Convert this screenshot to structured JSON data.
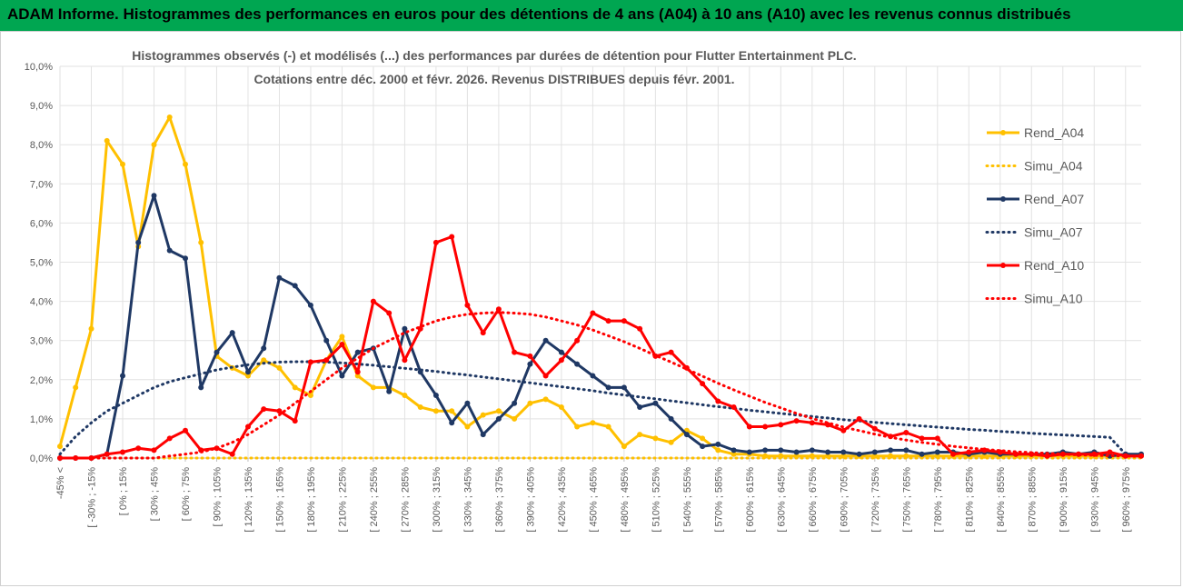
{
  "banner": {
    "title": "ADAM Informe. Histogrammes des performances en euros pour des détentions de 4 ans (A04) à 10 ans (A10) avec les revenus connus distribués"
  },
  "chart_data": {
    "type": "line",
    "title_line1": "Histogrammes observés (-) et modélisés (...) des performances par durées de détention pour Flutter Entertainment PLC.",
    "title_line2": "Cotations entre déc. 2000 et févr. 2026. Revenus DISTRIBUES depuis févr. 2001.",
    "xlabel": "",
    "ylabel": "",
    "ylim": [
      0,
      10
    ],
    "yticks": [
      "0,0%",
      "1,0%",
      "2,0%",
      "3,0%",
      "4,0%",
      "5,0%",
      "6,0%",
      "7,0%",
      "8,0%",
      "9,0%",
      "10,0%"
    ],
    "xtick_labels": [
      "-45% <",
      "[ -30% ; -15%",
      "[ 0% ; 15%",
      "[ 30% ; 45%",
      "[ 60% ; 75%",
      "[ 90% ; 105%",
      "[ 120% ; 135%",
      "[ 150% ; 165%",
      "[ 180% ; 195%",
      "[ 210% ; 225%",
      "[ 240% ; 255%",
      "[ 270% ; 285%",
      "[ 300% ; 315%",
      "[ 330% ; 345%",
      "[ 360% ; 375%",
      "[ 390% ; 405%",
      "[ 420% ; 435%",
      "[ 450% ; 465%",
      "[ 480% ; 495%",
      "[ 510% ; 525%",
      "[ 540% ; 555%",
      "[ 570% ; 585%",
      "[ 600% ; 615%",
      "[ 630% ; 645%",
      "[ 660% ; 675%",
      "[ 690% ; 705%",
      "[ 720% ; 735%",
      "[ 750% ; 765%",
      "[ 780% ; 795%",
      "[ 810% ; 825%",
      "[ 840% ; 855%",
      "[ 870% ; 885%",
      "[ 900% ; 915%",
      "[ 930% ; 945%",
      "[ 960% ; 975%"
    ],
    "n_points": 70,
    "legend_position": "right",
    "series": [
      {
        "name": "Rend_A04",
        "style": "solid",
        "color": "#ffc000",
        "values": [
          0.3,
          1.8,
          3.3,
          8.1,
          7.5,
          5.4,
          8.0,
          8.7,
          7.5,
          5.5,
          2.6,
          2.3,
          2.1,
          2.5,
          2.3,
          1.8,
          1.6,
          2.5,
          3.1,
          2.1,
          1.8,
          1.8,
          1.6,
          1.3,
          1.2,
          1.2,
          0.8,
          1.1,
          1.2,
          1.0,
          1.4,
          1.5,
          1.3,
          0.8,
          0.9,
          0.8,
          0.3,
          0.6,
          0.5,
          0.4,
          0.7,
          0.5,
          0.2,
          0.1,
          0.1,
          0.05,
          0.05,
          0.05,
          0.05,
          0.05,
          0.05,
          0.05,
          0.05,
          0.05,
          0.05,
          0.05,
          0.05,
          0.05,
          0.05,
          0.05,
          0.05,
          0.05,
          0.05,
          0.05,
          0.05,
          0.05,
          0.05,
          0.05,
          0.05,
          0.05
        ]
      },
      {
        "name": "Simu_A04",
        "style": "dotted",
        "color": "#ffc000",
        "values": [
          0,
          0,
          0,
          0,
          0,
          0,
          0,
          0,
          0,
          0,
          0,
          0,
          0,
          0,
          0,
          0,
          0,
          0,
          0,
          0,
          0,
          0,
          0,
          0,
          0,
          0,
          0,
          0,
          0,
          0,
          0,
          0,
          0,
          0,
          0,
          0,
          0,
          0,
          0,
          0,
          0,
          0,
          0,
          0,
          0,
          0,
          0,
          0,
          0,
          0,
          0,
          0,
          0,
          0,
          0,
          0,
          0,
          0,
          0,
          0,
          0,
          0,
          0,
          0,
          0,
          0,
          0,
          0,
          0,
          0
        ]
      },
      {
        "name": "Rend_A07",
        "style": "solid",
        "color": "#1f3864",
        "values": [
          0,
          0,
          0,
          0.1,
          2.1,
          5.5,
          6.7,
          5.3,
          5.1,
          1.8,
          2.7,
          3.2,
          2.2,
          2.8,
          4.6,
          4.4,
          3.9,
          3.0,
          2.1,
          2.7,
          2.8,
          1.7,
          3.3,
          2.2,
          1.6,
          0.9,
          1.4,
          0.6,
          1.0,
          1.4,
          2.4,
          3.0,
          2.7,
          2.4,
          2.1,
          1.8,
          1.8,
          1.3,
          1.4,
          1.0,
          0.6,
          0.3,
          0.35,
          0.2,
          0.15,
          0.2,
          0.2,
          0.15,
          0.2,
          0.15,
          0.15,
          0.1,
          0.15,
          0.2,
          0.2,
          0.1,
          0.15,
          0.15,
          0.1,
          0.15,
          0.1,
          0.1,
          0.1,
          0.1,
          0.15,
          0.1,
          0.15,
          0.05,
          0.1,
          0.1
        ]
      },
      {
        "name": "Simu_A07",
        "style": "dotted",
        "color": "#1f3864",
        "values": [
          0.1,
          0.55,
          0.9,
          1.2,
          1.4,
          1.6,
          1.8,
          1.95,
          2.05,
          2.15,
          2.25,
          2.32,
          2.38,
          2.42,
          2.45,
          2.46,
          2.46,
          2.45,
          2.43,
          2.4,
          2.37,
          2.33,
          2.29,
          2.25,
          2.21,
          2.16,
          2.12,
          2.07,
          2.02,
          1.97,
          1.92,
          1.87,
          1.82,
          1.77,
          1.72,
          1.66,
          1.61,
          1.56,
          1.51,
          1.46,
          1.41,
          1.36,
          1.31,
          1.27,
          1.22,
          1.18,
          1.14,
          1.1,
          1.06,
          1.02,
          0.98,
          0.95,
          0.91,
          0.88,
          0.85,
          0.82,
          0.79,
          0.76,
          0.73,
          0.71,
          0.68,
          0.66,
          0.63,
          0.61,
          0.59,
          0.57,
          0.55,
          0.53,
          0.1,
          0.05
        ]
      },
      {
        "name": "Rend_A10",
        "style": "solid",
        "color": "#ff0000",
        "values": [
          0,
          0,
          0,
          0.1,
          0.15,
          0.25,
          0.2,
          0.5,
          0.7,
          0.2,
          0.25,
          0.1,
          0.8,
          1.25,
          1.2,
          0.95,
          2.45,
          2.5,
          2.9,
          2.2,
          4.0,
          3.7,
          2.5,
          3.3,
          5.5,
          5.65,
          3.9,
          3.2,
          3.8,
          2.7,
          2.6,
          2.1,
          2.5,
          3.0,
          3.7,
          3.5,
          3.5,
          3.3,
          2.6,
          2.7,
          2.3,
          1.9,
          1.45,
          1.3,
          0.8,
          0.8,
          0.85,
          0.95,
          0.9,
          0.85,
          0.7,
          1.0,
          0.75,
          0.55,
          0.65,
          0.5,
          0.5,
          0.1,
          0.15,
          0.2,
          0.15,
          0.1,
          0.1,
          0.05,
          0.1,
          0.1,
          0.1,
          0.15,
          0.05,
          0.05
        ]
      },
      {
        "name": "Simu_A10",
        "style": "dotted",
        "color": "#ff0000",
        "values": [
          0,
          0,
          0,
          0,
          0,
          0,
          0,
          0.05,
          0.1,
          0.15,
          0.25,
          0.4,
          0.6,
          0.85,
          1.1,
          1.4,
          1.7,
          2.0,
          2.3,
          2.55,
          2.8,
          3.0,
          3.2,
          3.35,
          3.5,
          3.6,
          3.67,
          3.7,
          3.72,
          3.7,
          3.67,
          3.6,
          3.5,
          3.4,
          3.27,
          3.12,
          2.97,
          2.8,
          2.62,
          2.45,
          2.27,
          2.09,
          1.91,
          1.74,
          1.58,
          1.42,
          1.28,
          1.14,
          1.01,
          0.9,
          0.79,
          0.7,
          0.61,
          0.53,
          0.46,
          0.4,
          0.35,
          0.3,
          0.26,
          0.22,
          0.19,
          0.16,
          0.14,
          0.12,
          0.1,
          0.08,
          0.07,
          0.06,
          0.05,
          0.04
        ]
      }
    ]
  }
}
